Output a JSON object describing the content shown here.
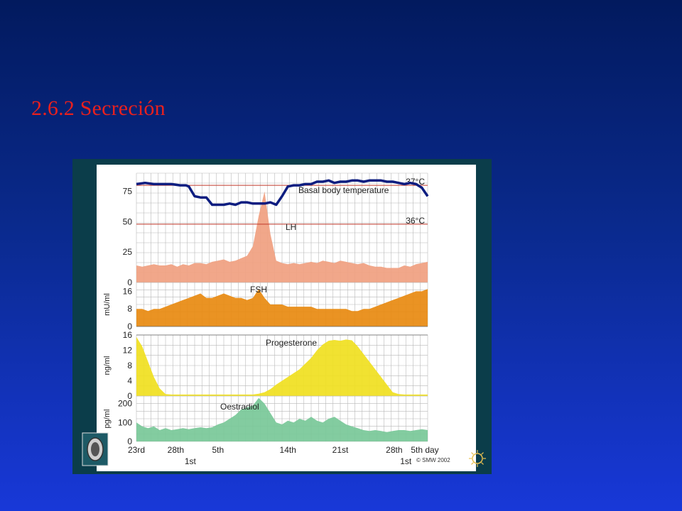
{
  "slide": {
    "title": "2.6.2 Secreción"
  },
  "chart_data": {
    "type": "area",
    "x_ticks": [
      "23rd",
      "28th",
      "5th",
      "14th",
      "21st",
      "28th",
      "5th day"
    ],
    "x_subticks": [
      "1st",
      "1st"
    ],
    "copyright": "© SMW 2002",
    "panels": [
      {
        "id": "lh-temp",
        "ylabel": "",
        "y_ticks": [
          "0",
          "25",
          "50",
          "75"
        ],
        "ylim": [
          0,
          90
        ],
        "series": [
          {
            "name": "LH",
            "color": "#f0a080",
            "x": [
              0,
              2,
              4,
              6,
              8,
              10,
              12,
              14,
              16,
              18,
              20,
              22,
              24,
              26,
              28,
              30,
              32,
              34,
              36,
              38,
              40,
              42,
              44,
              46,
              48,
              50,
              52,
              54,
              56,
              58,
              60,
              62,
              64,
              66,
              68,
              70,
              72,
              74,
              76,
              78,
              80,
              82,
              84,
              86,
              88,
              90,
              92,
              94,
              96,
              98,
              100
            ],
            "values": [
              14,
              13,
              14,
              15,
              14,
              14,
              15,
              13,
              15,
              14,
              16,
              16,
              15,
              17,
              18,
              19,
              17,
              18,
              20,
              22,
              30,
              55,
              75,
              40,
              18,
              16,
              15,
              16,
              15,
              16,
              17,
              16,
              18,
              17,
              16,
              18,
              17,
              16,
              15,
              16,
              14,
              13,
              13,
              12,
              12,
              12,
              14,
              13,
              15,
              16,
              17
            ]
          },
          {
            "name": "Basal body temperature",
            "color": "#0d1d80",
            "x": [
              0,
              3,
              6,
              9,
              12,
              15,
              17,
              18,
              20,
              22,
              24,
              26,
              28,
              30,
              32,
              34,
              36,
              38,
              40,
              42,
              44,
              46,
              48,
              50,
              52,
              54,
              56,
              58,
              60,
              62,
              64,
              66,
              68,
              70,
              72,
              74,
              76,
              78,
              80,
              82,
              84,
              86,
              88,
              90,
              92,
              94,
              96,
              98,
              100
            ],
            "values": [
              81,
              82,
              81,
              81,
              81,
              80,
              80,
              79,
              71,
              70,
              70,
              64,
              64,
              64,
              65,
              64,
              66,
              66,
              65,
              65,
              65,
              66,
              64,
              71,
              79,
              80,
              80,
              81,
              81,
              83,
              83,
              84,
              82,
              83,
              83,
              84,
              84,
              83,
              84,
              84,
              84,
              83,
              83,
              82,
              81,
              82,
              81,
              78,
              71
            ]
          }
        ],
        "reference_lines": [
          {
            "label": "37°C",
            "value": 80
          },
          {
            "label": "36°C",
            "value": 48
          }
        ]
      },
      {
        "id": "fsh",
        "ylabel": "mU/ml",
        "y_ticks": [
          "0",
          "8",
          "16"
        ],
        "ylim": [
          0,
          20
        ],
        "series": [
          {
            "name": "FSH",
            "color": "#e88a10",
            "x": [
              0,
              2,
              4,
              6,
              8,
              10,
              12,
              14,
              16,
              18,
              20,
              22,
              24,
              26,
              28,
              30,
              32,
              34,
              36,
              38,
              40,
              42,
              44,
              46,
              48,
              50,
              52,
              54,
              56,
              58,
              60,
              62,
              64,
              66,
              68,
              70,
              72,
              74,
              76,
              78,
              80,
              82,
              84,
              86,
              88,
              90,
              92,
              94,
              96,
              98,
              100
            ],
            "values": [
              8,
              8,
              7,
              8,
              8,
              9,
              10,
              11,
              12,
              13,
              14,
              15,
              13,
              13,
              14,
              15,
              14,
              13,
              13,
              12,
              13,
              17,
              13,
              10,
              10,
              10,
              9,
              9,
              9,
              9,
              9,
              8,
              8,
              8,
              8,
              8,
              8,
              7,
              7,
              8,
              8,
              9,
              10,
              11,
              12,
              13,
              14,
              15,
              16,
              16,
              17
            ]
          }
        ]
      },
      {
        "id": "progesterone",
        "ylabel": "ng/ml",
        "y_ticks": [
          "0",
          "4",
          "8",
          "12",
          "16"
        ],
        "ylim": [
          0,
          16
        ],
        "series": [
          {
            "name": "Progesterone",
            "color": "#f0e020",
            "x": [
              0,
              2,
              4,
              6,
              8,
              10,
              12,
              14,
              16,
              18,
              20,
              22,
              24,
              26,
              28,
              30,
              32,
              34,
              36,
              38,
              40,
              42,
              44,
              46,
              48,
              50,
              52,
              54,
              56,
              58,
              60,
              62,
              64,
              66,
              68,
              70,
              72,
              74,
              76,
              78,
              80,
              82,
              84,
              86,
              88,
              90,
              92,
              94,
              96,
              98,
              100
            ],
            "values": [
              15.5,
              13,
              9,
              5,
              2,
              0.5,
              0.4,
              0.4,
              0.4,
              0.4,
              0.4,
              0.4,
              0.4,
              0.4,
              0.4,
              0.4,
              0.4,
              0.4,
              0.4,
              0.4,
              0.4,
              0.6,
              1,
              1.8,
              3,
              4,
              5,
              6,
              7,
              8.5,
              10,
              12,
              13.5,
              14.5,
              14.7,
              14.5,
              14.8,
              14.6,
              13,
              11,
              9,
              7,
              5,
              3,
              1,
              0.5,
              0.4,
              0.4,
              0.4,
              0.4,
              0.4
            ]
          }
        ]
      },
      {
        "id": "oestradiol",
        "ylabel": "pg/ml",
        "y_ticks": [
          "0",
          "100",
          "200"
        ],
        "ylim": [
          0,
          240
        ],
        "series": [
          {
            "name": "Oestradiol",
            "color": "#78c898",
            "x": [
              0,
              2,
              4,
              6,
              8,
              10,
              12,
              14,
              16,
              18,
              20,
              22,
              24,
              26,
              28,
              30,
              32,
              34,
              36,
              38,
              40,
              42,
              44,
              46,
              48,
              50,
              52,
              54,
              56,
              58,
              60,
              62,
              64,
              66,
              68,
              70,
              72,
              74,
              76,
              78,
              80,
              82,
              84,
              86,
              88,
              90,
              92,
              94,
              96,
              98,
              100
            ],
            "values": [
              100,
              80,
              70,
              80,
              60,
              70,
              60,
              65,
              70,
              65,
              70,
              75,
              70,
              75,
              90,
              100,
              120,
              140,
              170,
              180,
              190,
              230,
              200,
              150,
              100,
              90,
              110,
              100,
              120,
              110,
              130,
              110,
              100,
              120,
              130,
              110,
              90,
              80,
              70,
              60,
              55,
              60,
              55,
              50,
              55,
              60,
              60,
              55,
              60,
              65,
              60
            ]
          }
        ]
      }
    ]
  }
}
